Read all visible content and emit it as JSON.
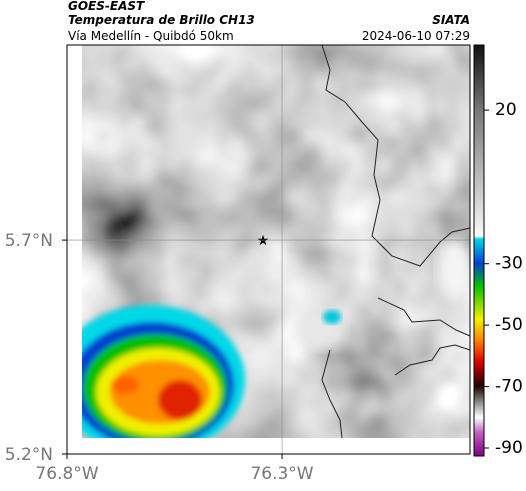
{
  "header": {
    "title": "GOES-EAST",
    "subtitle": "Temperatura de Brillo CH13",
    "source": "SIATA",
    "route": "Vía Medellín - Quibdó 50km",
    "timestamp": "2024-06-10 07:29"
  },
  "map": {
    "xlim": [
      -76.8,
      -75.863
    ],
    "ylim": [
      5.2,
      6.156
    ],
    "xticks": [
      {
        "value": -76.8,
        "label": "76.8°W"
      },
      {
        "value": -76.3,
        "label": "76.3°W"
      }
    ],
    "yticks": [
      {
        "value": 5.2,
        "label": "5.2°N"
      },
      {
        "value": 5.7,
        "label": "5.7°N"
      }
    ],
    "grid": true
  },
  "colorbar": {
    "lim": [
      -92.6,
      41.2
    ],
    "ticks": [
      20,
      -30,
      -50,
      -70,
      -90
    ]
  }
}
